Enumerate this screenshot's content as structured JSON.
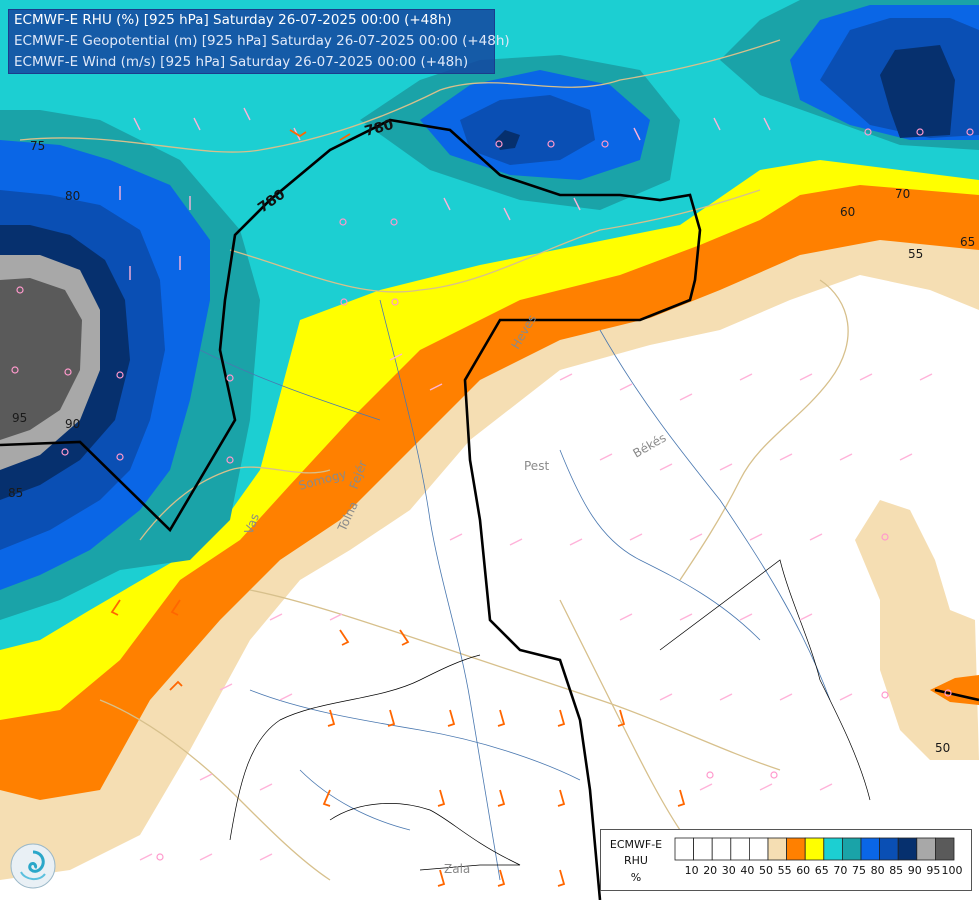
{
  "header": {
    "lines": [
      "ECMWF-E RHU (%) [925 hPa] Saturday 26-07-2025 00:00 (+48h)",
      "ECMWF-E Geopotential (m) [925 hPa] Saturday 26-07-2025 00:00 (+48h)",
      "ECMWF-E Wind (m/s) [925 hPa] Saturday 26-07-2025 00:00 (+48h)"
    ]
  },
  "legend": {
    "model": "ECMWF-E",
    "variable": "RHU",
    "unit": "%",
    "levels": [
      "10",
      "20",
      "30",
      "40",
      "50",
      "55",
      "60",
      "65",
      "70",
      "75",
      "80",
      "85",
      "90",
      "95",
      "100"
    ],
    "colors": [
      "#ffffff",
      "#ffffff",
      "#ffffff",
      "#ffffff",
      "#ffffff",
      "#f5deb3",
      "#ff8000",
      "#ffff00",
      "#1ccfd2",
      "#1aa3a8",
      "#0a66e6",
      "#0a4fb4",
      "#06306e",
      "#a8a8a8",
      "#5a5a5a"
    ]
  },
  "rhu_contour_labels": [
    "50",
    "55",
    "60",
    "65",
    "70",
    "75",
    "80",
    "85",
    "90",
    "95"
  ],
  "geopotential": {
    "labels": [
      "780",
      "780"
    ],
    "color": "#000000"
  },
  "regions": [
    "Heves",
    "Pest",
    "Békés",
    "Tolna",
    "Somogy",
    "Fejér",
    "Vas",
    "Zala"
  ],
  "colors": {
    "rhu_50": "#ffffff",
    "rhu_55": "#f5deb3",
    "rhu_60": "#ff8000",
    "rhu_65": "#ffff00",
    "rhu_70": "#1ccfd2",
    "rhu_75": "#1aa3a8",
    "rhu_80": "#0a66e6",
    "rhu_85": "#0a4fb4",
    "rhu_90": "#06306e",
    "rhu_95": "#a8a8a8",
    "rhu_100": "#5a5a5a",
    "wind_light": "#ffb3d9",
    "wind_strong": "#ff6600",
    "borders": "#d7c08c",
    "rivers": "#4a78b0"
  }
}
